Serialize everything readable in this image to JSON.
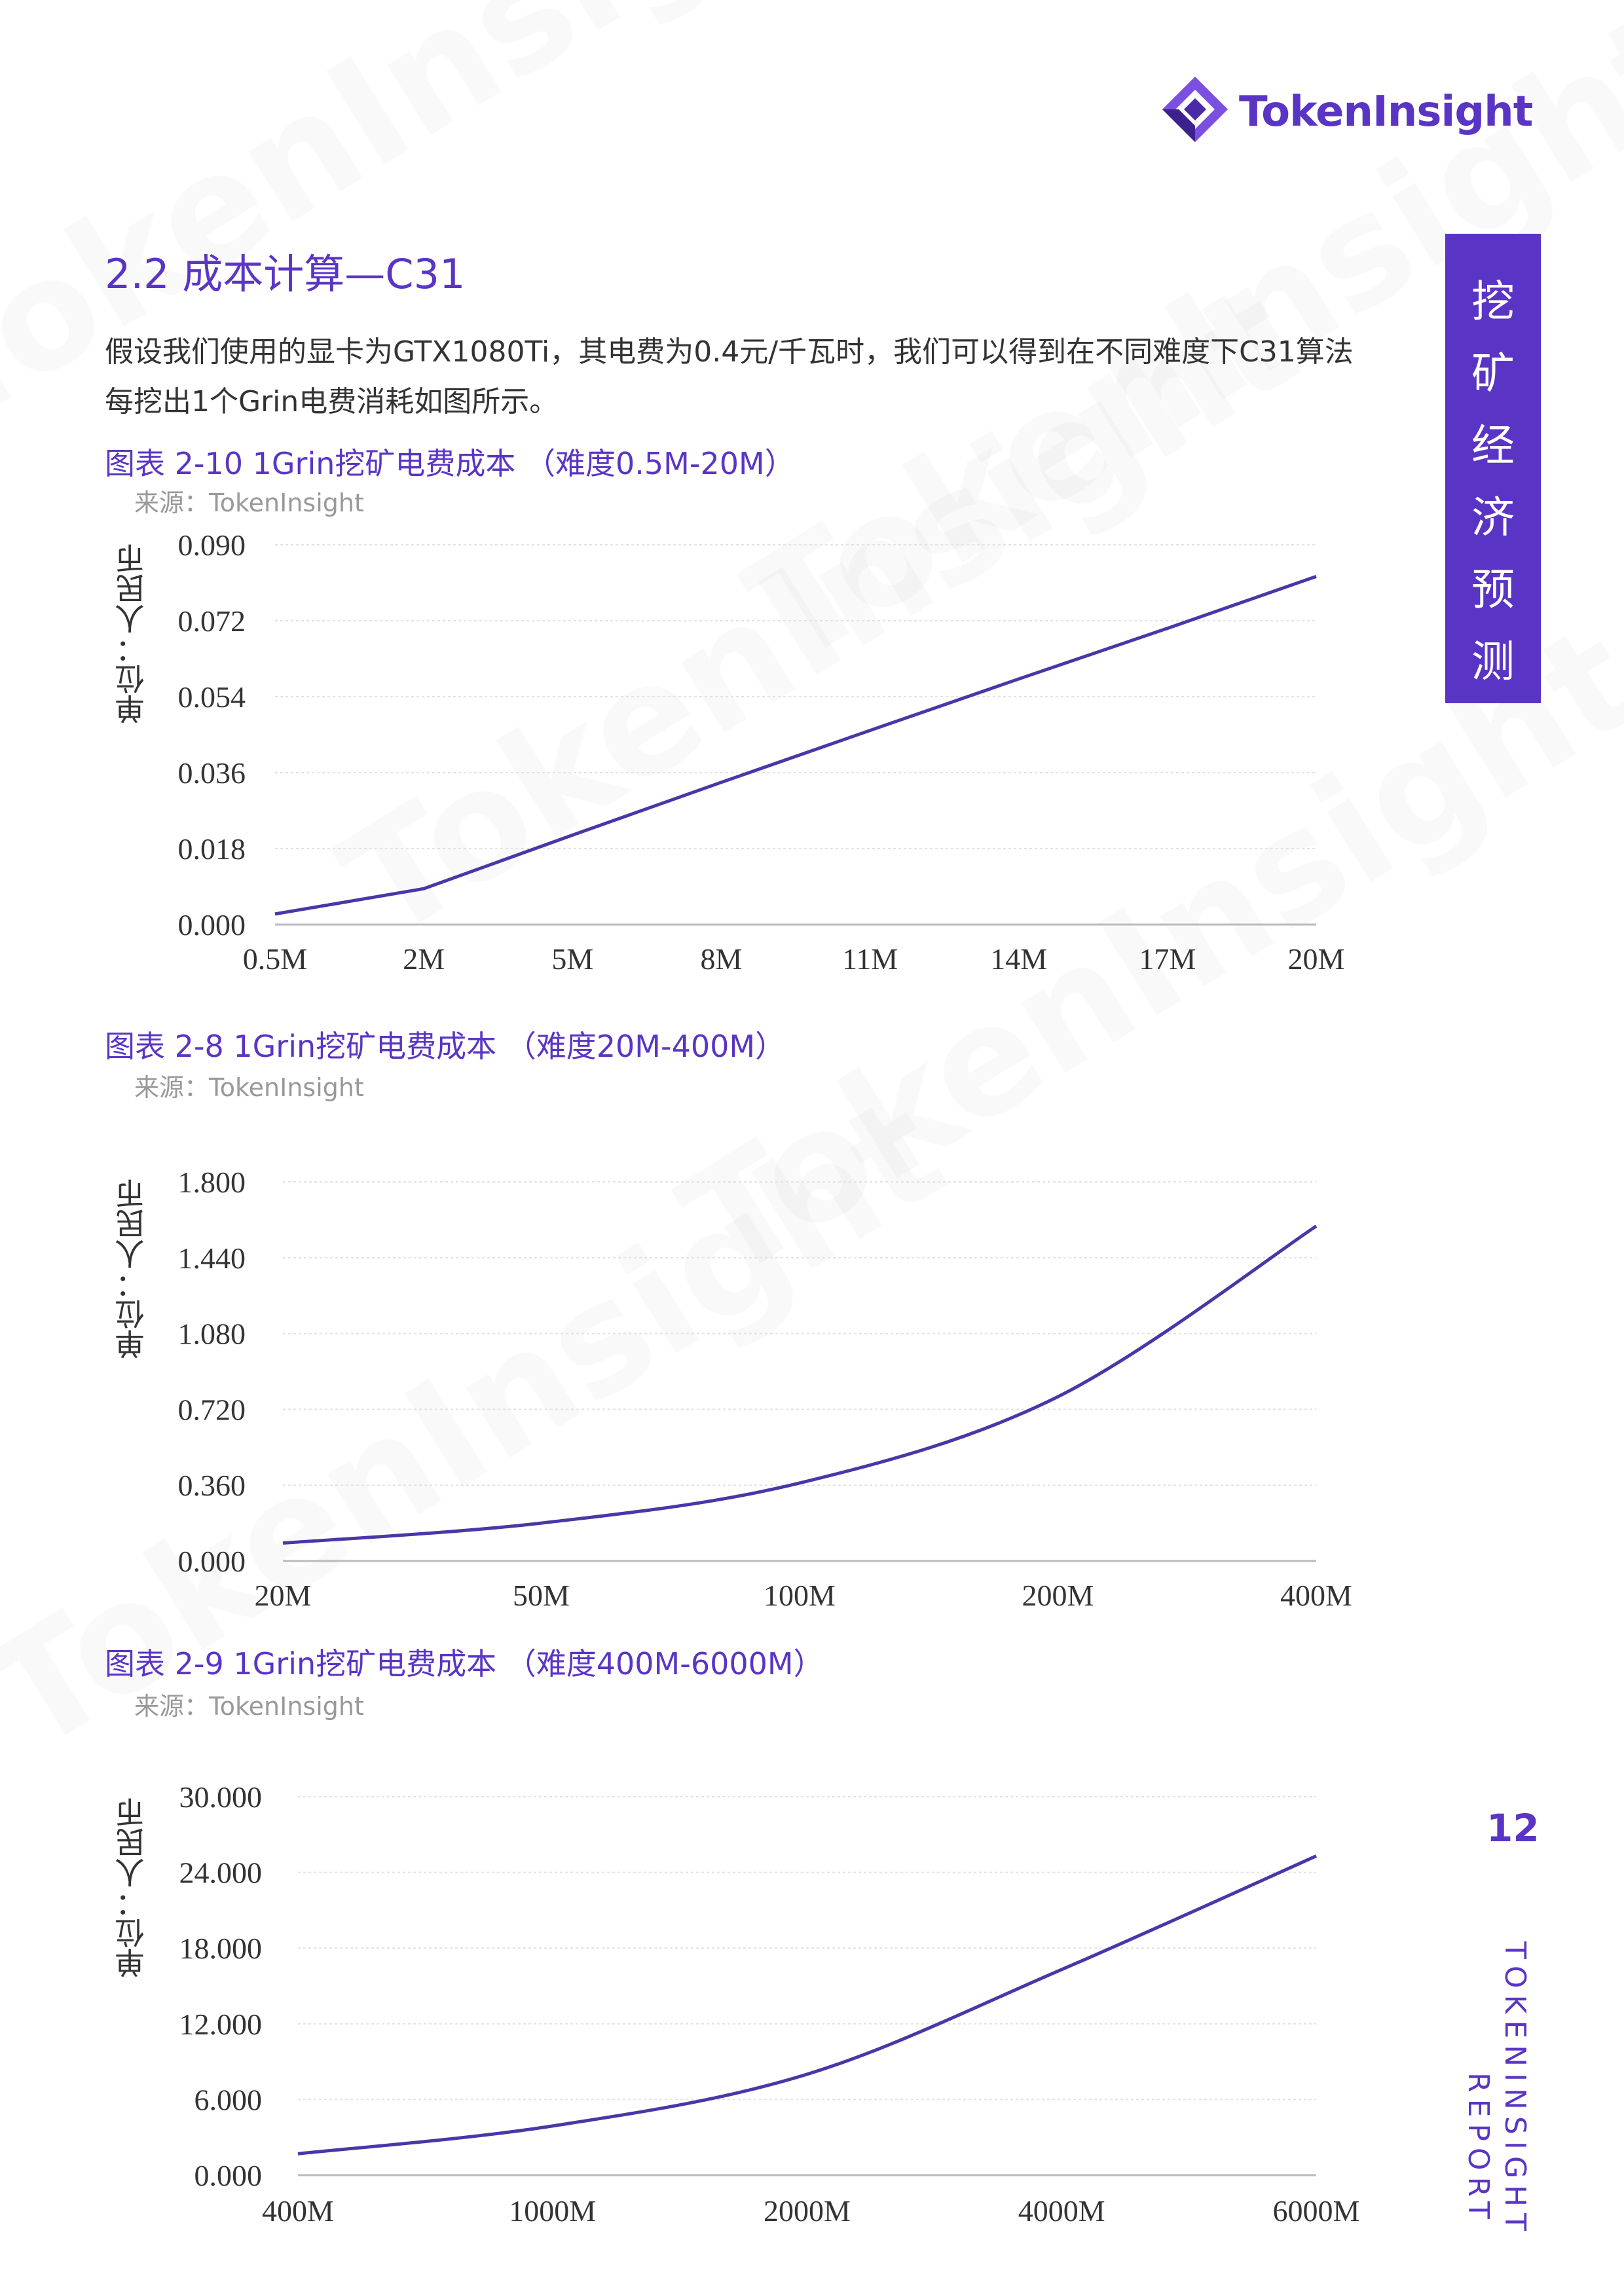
{
  "watermark": "TokenInsight",
  "logo": {
    "text": "TokenInsight",
    "color": "#5a35c5"
  },
  "section_title": "2.2 成本计算—C31",
  "paragraph": "假设我们使用的显卡为GTX1080Ti，其电费为0.4元/千瓦时，我们可以得到在不同难度下C31算法每挖出1个Grin电费消耗如图所示。",
  "side_tab": [
    "挖",
    "矿",
    "经",
    "济",
    "预",
    "测"
  ],
  "page_number": "12",
  "vertical_footer": [
    "TOKENINSIGHT",
    "REPORT"
  ],
  "figures": [
    {
      "title": "图表 2-10 1Grin挖矿电费成本 （难度0.5M-20M）",
      "source": "来源：TokenInsight",
      "ylabel": "单位：人民币",
      "chart_data": {
        "type": "line",
        "categories": [
          "0.5M",
          "2M",
          "5M",
          "8M",
          "11M",
          "14M",
          "17M",
          "20M"
        ],
        "yticks": [
          "0.000",
          "0.018",
          "0.036",
          "0.054",
          "0.072",
          "0.090"
        ],
        "ylim": [
          0,
          0.09
        ],
        "series": [
          {
            "values": [
              0.0025,
              0.0085,
              0.0212,
              0.0337,
              0.046,
              0.0582,
              0.0702,
              0.0825
            ]
          }
        ],
        "line_color": "#4b36a8"
      }
    },
    {
      "title": "图表 2-8 1Grin挖矿电费成本 （难度20M-400M）",
      "source": "来源：TokenInsight",
      "ylabel": "单位：人民币",
      "chart_data": {
        "type": "line",
        "categories": [
          "20M",
          "50M",
          "100M",
          "200M",
          "400M"
        ],
        "yticks": [
          "0.000",
          "0.360",
          "0.720",
          "1.080",
          "1.440",
          "1.800"
        ],
        "ylim": [
          0,
          1.8
        ],
        "series": [
          {
            "values": [
              0.085,
              0.18,
              0.37,
              0.78,
              1.59
            ]
          }
        ],
        "line_color": "#4b36a8"
      }
    },
    {
      "title": "图表 2-9 1Grin挖矿电费成本 （难度400M-6000M）",
      "source": "来源：TokenInsight",
      "ylabel": "单位：人民币",
      "chart_data": {
        "type": "line",
        "categories": [
          "400M",
          "1000M",
          "2000M",
          "4000M",
          "6000M"
        ],
        "yticks": [
          "0.000",
          "6.000",
          "12.000",
          "18.000",
          "24.000",
          "30.000"
        ],
        "ylim": [
          0,
          30
        ],
        "series": [
          {
            "values": [
              1.7,
              3.9,
              8.0,
              16.3,
              25.3
            ]
          }
        ],
        "line_color": "#4b36a8"
      }
    }
  ]
}
